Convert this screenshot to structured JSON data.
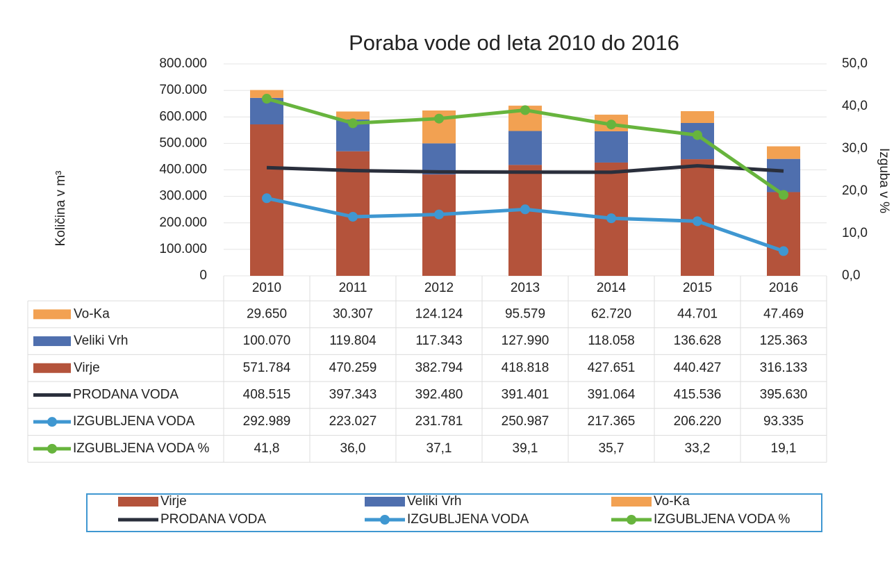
{
  "chart_data": {
    "type": "combo",
    "title": "Poraba vode od leta 2010 do 2016",
    "y_label": "Količina v m³",
    "y2_label": "Izguba v %",
    "categories": [
      "2010",
      "2011",
      "2012",
      "2013",
      "2014",
      "2015",
      "2016"
    ],
    "ylim": [
      0,
      800000
    ],
    "yticks": [
      0,
      {
        "value": 100000,
        "label": "100.000"
      },
      {
        "value": 200000,
        "label": "200.000"
      },
      {
        "value": 300000,
        "label": "300.000"
      },
      {
        "value": 400000,
        "label": "400.000"
      },
      {
        "value": 500000,
        "label": "500.000"
      },
      {
        "value": 600000,
        "label": "600.000"
      },
      {
        "value": 700000,
        "label": "700.000"
      },
      {
        "value": 800000,
        "label": "800.000"
      }
    ],
    "y2lim": [
      0,
      50
    ],
    "y2ticks": [
      {
        "value": 0,
        "label": "0,0"
      },
      {
        "value": 10,
        "label": "10,0"
      },
      {
        "value": 20,
        "label": "20,0"
      },
      {
        "value": 30,
        "label": "30,0"
      },
      {
        "value": 40,
        "label": "40,0"
      },
      {
        "value": 50,
        "label": "50,0"
      }
    ],
    "legend": "bottom",
    "data_table": true,
    "series": [
      {
        "name": "Virje",
        "type": "bar",
        "stacked": true,
        "color": "#b4533b",
        "values": [
          571784,
          470259,
          382794,
          418818,
          427651,
          440427,
          316133
        ],
        "value_labels": [
          "571.784",
          "470.259",
          "382.794",
          "418.818",
          "427.651",
          "440.427",
          "316.133"
        ]
      },
      {
        "name": "Veliki Vrh",
        "type": "bar",
        "stacked": true,
        "color": "#4f6fae",
        "values": [
          100070,
          119804,
          117343,
          127990,
          118058,
          136628,
          125363
        ],
        "value_labels": [
          "100.070",
          "119.804",
          "117.343",
          "127.990",
          "118.058",
          "136.628",
          "125.363"
        ]
      },
      {
        "name": "Vo-Ka",
        "type": "bar",
        "stacked": true,
        "color": "#f2a152",
        "values": [
          29650,
          30307,
          124124,
          95579,
          62720,
          44701,
          47469
        ],
        "value_labels": [
          "29.650",
          "30.307",
          "124.124",
          "95.579",
          "62.720",
          "44.701",
          "47.469"
        ]
      },
      {
        "name": "PRODANA VODA",
        "type": "line",
        "color": "#2a2f3c",
        "marker": false,
        "values": [
          408515,
          397343,
          392480,
          391401,
          391064,
          415536,
          395630
        ],
        "value_labels": [
          "408.515",
          "397.343",
          "392.480",
          "391.401",
          "391.064",
          "415.536",
          "395.630"
        ]
      },
      {
        "name": "IZGUBLJENA VODA",
        "type": "line",
        "color": "#3f97d1",
        "marker": true,
        "values": [
          292989,
          223027,
          231781,
          250987,
          217365,
          206220,
          93335
        ],
        "value_labels": [
          "292.989",
          "223.027",
          "231.781",
          "250.987",
          "217.365",
          "206.220",
          "93.335"
        ]
      },
      {
        "name": "IZGUBLJENA VODA %",
        "type": "line",
        "axis": "y2",
        "color": "#67b43d",
        "marker": true,
        "values": [
          41.8,
          36.0,
          37.1,
          39.1,
          35.7,
          33.2,
          19.1
        ],
        "value_labels": [
          "41,8",
          "36,0",
          "37,1",
          "39,1",
          "35,7",
          "33,2",
          "19,1"
        ]
      }
    ]
  }
}
